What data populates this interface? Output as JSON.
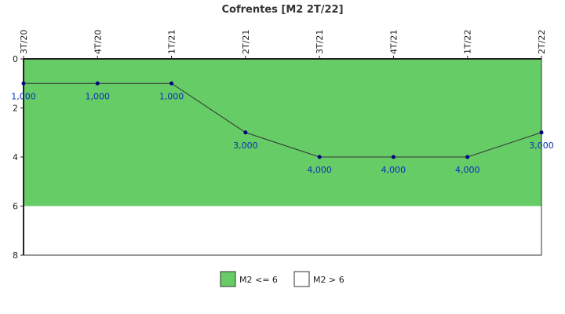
{
  "chart_data": {
    "type": "line",
    "title": "Cofrentes [M2 2T/22]",
    "categories": [
      "3T/20",
      "4T/20",
      "1T/21",
      "2T/21",
      "3T/21",
      "4T/21",
      "1T/22",
      "2T/22"
    ],
    "series": [
      {
        "values": [
          1,
          1,
          1,
          3,
          4,
          4,
          4,
          3
        ],
        "labels": [
          "1,000",
          "1,000",
          "1,000",
          "3,000",
          "4,000",
          "4,000",
          "4,000",
          "3,000"
        ]
      }
    ],
    "y_axis": {
      "min": 0,
      "max": 8,
      "inverted": true,
      "ticks": [
        "0",
        "2",
        "4",
        "6",
        "8"
      ],
      "tick_values": [
        0,
        2,
        4,
        6,
        8
      ]
    },
    "x_axis_position": "top",
    "bands": [
      {
        "from": 0,
        "to": 6,
        "color": "#66cc66",
        "label": "M2 <= 6"
      },
      {
        "from": 6,
        "to": 8,
        "color": "#ffffff",
        "label": "M2 > 6"
      }
    ],
    "line_color": "#333333",
    "marker_color": "#000080",
    "label_color": "#0a2fb8",
    "legend_position": "bottom-center"
  }
}
